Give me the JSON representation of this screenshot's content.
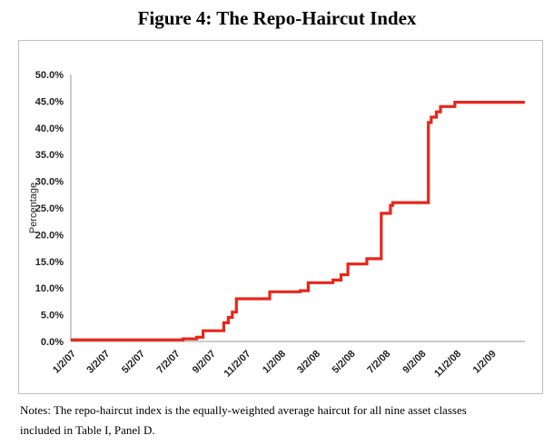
{
  "figure": {
    "title": "Figure 4: The Repo-Haircut Index",
    "notes_line1": "Notes: The repo-haircut index is the equally-weighted average haircut for all nine asset classes",
    "notes_line2": "included in Table I, Panel D."
  },
  "chart_data": {
    "type": "line",
    "title": "Figure 4: The Repo-Haircut Index",
    "xlabel": "",
    "ylabel": "Percentage",
    "ylim": [
      0,
      50
    ],
    "yticks": [
      "0.0%",
      "5.0%",
      "10.0%",
      "15.0%",
      "20.0%",
      "25.0%",
      "30.0%",
      "35.0%",
      "40.0%",
      "45.0%",
      "50.0%"
    ],
    "xlim": [
      "2007-01-02",
      "2009-03-02"
    ],
    "xticks": [
      "1/2/07",
      "3/2/07",
      "5/2/07",
      "7/2/07",
      "9/2/07",
      "11/2/07",
      "1/2/08",
      "3/2/08",
      "5/2/08",
      "7/2/08",
      "9/2/08",
      "11/2/08",
      "1/2/09"
    ],
    "grid": false,
    "legend": "none",
    "series": [
      {
        "color": "#e8261c",
        "step": true,
        "points": [
          [
            "2007-01-02",
            0.3
          ],
          [
            "2007-07-16",
            0.3
          ],
          [
            "2007-07-16",
            0.5
          ],
          [
            "2007-08-09",
            0.5
          ],
          [
            "2007-08-09",
            0.8
          ],
          [
            "2007-08-20",
            0.8
          ],
          [
            "2007-08-20",
            2.0
          ],
          [
            "2007-09-25",
            2.0
          ],
          [
            "2007-09-25",
            3.5
          ],
          [
            "2007-10-03",
            3.5
          ],
          [
            "2007-10-03",
            4.5
          ],
          [
            "2007-10-10",
            4.5
          ],
          [
            "2007-10-10",
            5.5
          ],
          [
            "2007-10-17",
            5.5
          ],
          [
            "2007-10-17",
            8.0
          ],
          [
            "2007-12-14",
            8.0
          ],
          [
            "2007-12-14",
            9.3
          ],
          [
            "2008-02-05",
            9.3
          ],
          [
            "2008-02-05",
            9.5
          ],
          [
            "2008-02-19",
            9.5
          ],
          [
            "2008-02-19",
            11.0
          ],
          [
            "2008-04-02",
            11.0
          ],
          [
            "2008-04-02",
            11.5
          ],
          [
            "2008-04-16",
            11.5
          ],
          [
            "2008-04-16",
            12.5
          ],
          [
            "2008-04-28",
            12.5
          ],
          [
            "2008-04-28",
            14.5
          ],
          [
            "2008-05-31",
            14.5
          ],
          [
            "2008-05-31",
            15.5
          ],
          [
            "2008-06-25",
            15.5
          ],
          [
            "2008-06-25",
            24.0
          ],
          [
            "2008-07-11",
            24.0
          ],
          [
            "2008-07-11",
            25.5
          ],
          [
            "2008-07-15",
            25.5
          ],
          [
            "2008-07-15",
            26.0
          ],
          [
            "2008-09-15",
            26.0
          ],
          [
            "2008-09-15",
            41.0
          ],
          [
            "2008-09-20",
            41.0
          ],
          [
            "2008-09-20",
            42.0
          ],
          [
            "2008-09-29",
            42.0
          ],
          [
            "2008-09-29",
            43.0
          ],
          [
            "2008-10-06",
            43.0
          ],
          [
            "2008-10-06",
            44.0
          ],
          [
            "2008-10-31",
            44.0
          ],
          [
            "2008-10-31",
            44.8
          ],
          [
            "2009-03-02",
            44.8
          ]
        ]
      }
    ]
  }
}
